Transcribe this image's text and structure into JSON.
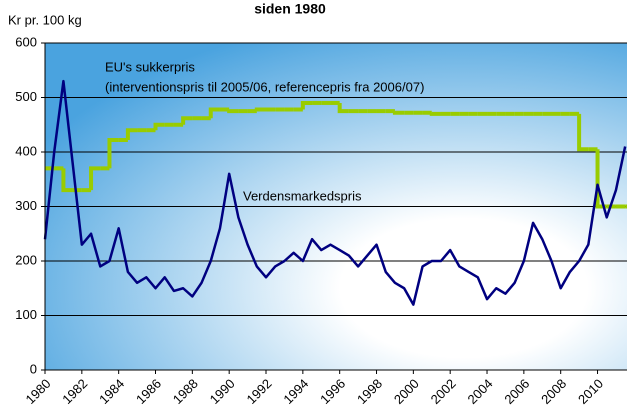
{
  "chart_data": {
    "type": "line",
    "title": "siden 1980",
    "y_label": "Kr pr. 100 kg",
    "annotations": [
      "(interventionspris til 2005/06, referencepris fra 2006/07)"
    ],
    "x": [
      1980,
      1980.5,
      1981,
      1981.5,
      1982,
      1982.5,
      1983,
      1983.5,
      1984,
      1984.5,
      1985,
      1985.5,
      1986,
      1986.5,
      1987,
      1987.5,
      1988,
      1988.5,
      1989,
      1989.5,
      1990,
      1990.5,
      1991,
      1991.5,
      1992,
      1992.5,
      1993,
      1993.5,
      1994,
      1994.5,
      1995,
      1995.5,
      1996,
      1996.5,
      1997,
      1997.5,
      1998,
      1998.5,
      1999,
      1999.5,
      2000,
      2000.5,
      2001,
      2001.5,
      2002,
      2002.5,
      2003,
      2003.5,
      2004,
      2004.5,
      2005,
      2005.5,
      2006,
      2006.5,
      2007,
      2007.5,
      2008,
      2008.5,
      2009,
      2009.5,
      2010,
      2010.5,
      2011,
      2011.5
    ],
    "series": [
      {
        "name": "EU's sukkerpris",
        "color": "#99cc00",
        "step": true,
        "values": [
          370,
          370,
          330,
          330,
          330,
          370,
          370,
          422,
          422,
          440,
          440,
          440,
          450,
          450,
          450,
          462,
          462,
          462,
          478,
          478,
          475,
          475,
          475,
          478,
          478,
          478,
          478,
          478,
          490,
          490,
          490,
          490,
          475,
          475,
          475,
          475,
          475,
          475,
          472,
          472,
          472,
          472,
          470,
          470,
          470,
          470,
          470,
          470,
          470,
          470,
          470,
          470,
          470,
          470,
          470,
          470,
          470,
          470,
          405,
          405,
          300,
          300,
          300,
          300
        ]
      },
      {
        "name": "Verdensmarkedspris",
        "color": "#000080",
        "values": [
          240,
          400,
          530,
          380,
          230,
          250,
          190,
          200,
          260,
          180,
          160,
          170,
          150,
          170,
          145,
          150,
          135,
          160,
          200,
          260,
          360,
          280,
          230,
          190,
          170,
          190,
          200,
          215,
          200,
          240,
          220,
          230,
          220,
          210,
          190,
          210,
          230,
          180,
          160,
          150,
          120,
          190,
          200,
          200,
          220,
          190,
          180,
          170,
          130,
          150,
          140,
          160,
          200,
          270,
          240,
          200,
          150,
          180,
          200,
          230,
          340,
          280,
          330,
          410
        ]
      }
    ],
    "xlim": [
      1980,
      2011.6
    ],
    "ylim": [
      0,
      600
    ],
    "xticks": [
      1980,
      1982,
      1984,
      1986,
      1988,
      1990,
      1992,
      1994,
      1996,
      1998,
      2000,
      2002,
      2004,
      2006,
      2008,
      2010
    ],
    "yticks": [
      0,
      100,
      200,
      300,
      400,
      500,
      600
    ],
    "grid": true
  }
}
